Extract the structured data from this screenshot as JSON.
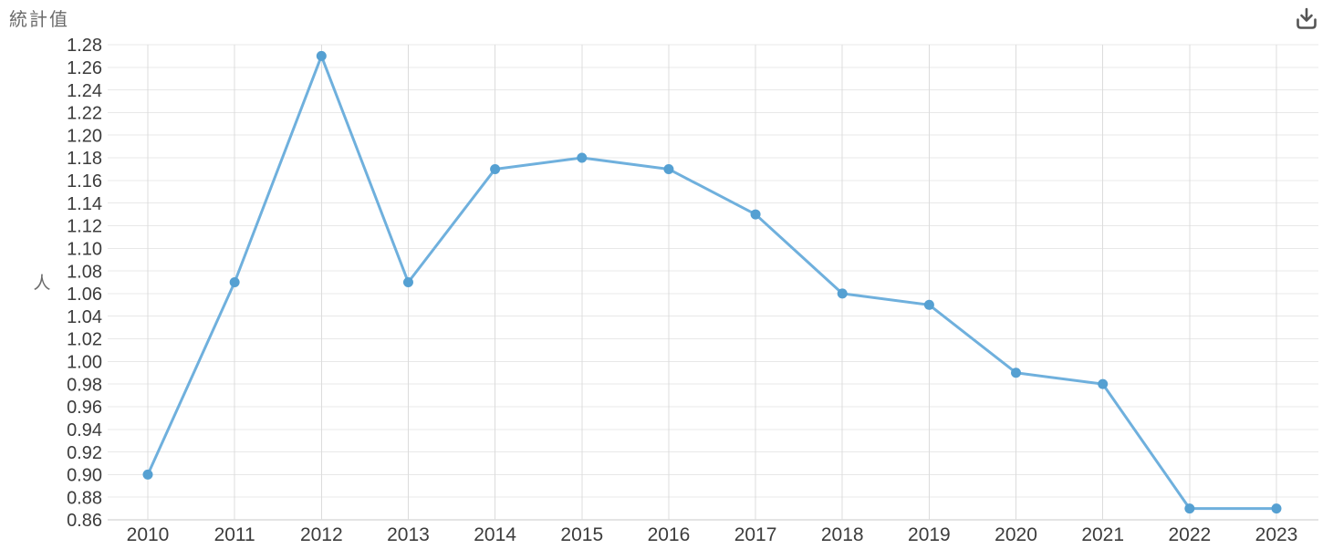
{
  "header": {
    "title": "統計值"
  },
  "toolbar": {
    "download_icon": "download-icon"
  },
  "chart_data": {
    "type": "line",
    "title": "統計值",
    "ylabel": "人",
    "xlabel": "",
    "categories": [
      "2010",
      "2011",
      "2012",
      "2013",
      "2014",
      "2015",
      "2016",
      "2017",
      "2018",
      "2019",
      "2020",
      "2021",
      "2022",
      "2023"
    ],
    "series": [
      {
        "name": "統計值",
        "values": [
          0.9,
          1.07,
          1.27,
          1.07,
          1.17,
          1.18,
          1.17,
          1.13,
          1.06,
          1.05,
          0.99,
          0.98,
          0.87,
          0.87
        ]
      }
    ],
    "ylim": [
      0.86,
      1.28
    ],
    "ytick_step": 0.02,
    "ytick_decimals": 2,
    "grid": true,
    "legend": "none",
    "colors": {
      "line": "#6fb0dd",
      "marker": "#55a0d2",
      "h_grid": "#e8e8e8",
      "v_grid": "#dcdcdc",
      "axis_line": "#c8c8c8",
      "tick_label": "#3c3c3c",
      "axis_label": "#6b6b6b",
      "icon": "#555555"
    }
  }
}
